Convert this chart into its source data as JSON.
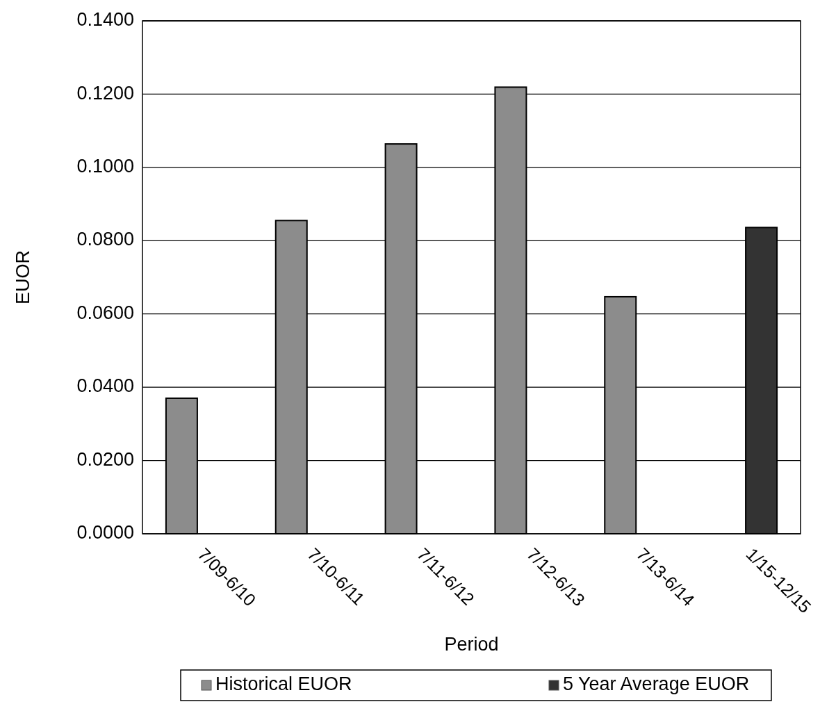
{
  "chart_data": {
    "type": "bar",
    "xlabel": "Period",
    "ylabel": "EUOR",
    "categories": [
      "7/09-6/10",
      "7/10-6/11",
      "7/11-6/12",
      "7/12-6/13",
      "7/13-6/14",
      "1/15-12/15"
    ],
    "series": [
      {
        "name": "Historical EUOR",
        "color": "#8c8c8c",
        "values": [
          0.037,
          0.0855,
          0.1064,
          0.1219,
          0.0647,
          null
        ]
      },
      {
        "name": "5 Year Average EUOR",
        "color": "#333333",
        "values": [
          null,
          null,
          null,
          null,
          null,
          0.0836
        ]
      }
    ],
    "ylim": [
      0,
      0.14
    ],
    "yticks": [
      {
        "value": 0,
        "label": "0.0000"
      },
      {
        "value": 0.02,
        "label": "0.0200"
      },
      {
        "value": 0.04,
        "label": "0.0400"
      },
      {
        "value": 0.06,
        "label": "0.0600"
      },
      {
        "value": 0.08,
        "label": "0.0800"
      },
      {
        "value": 0.1,
        "label": "0.1000"
      },
      {
        "value": 0.12,
        "label": "0.1200"
      },
      {
        "value": 0.14,
        "label": "0.1400"
      }
    ],
    "grid": "y",
    "legend": "bottom"
  }
}
